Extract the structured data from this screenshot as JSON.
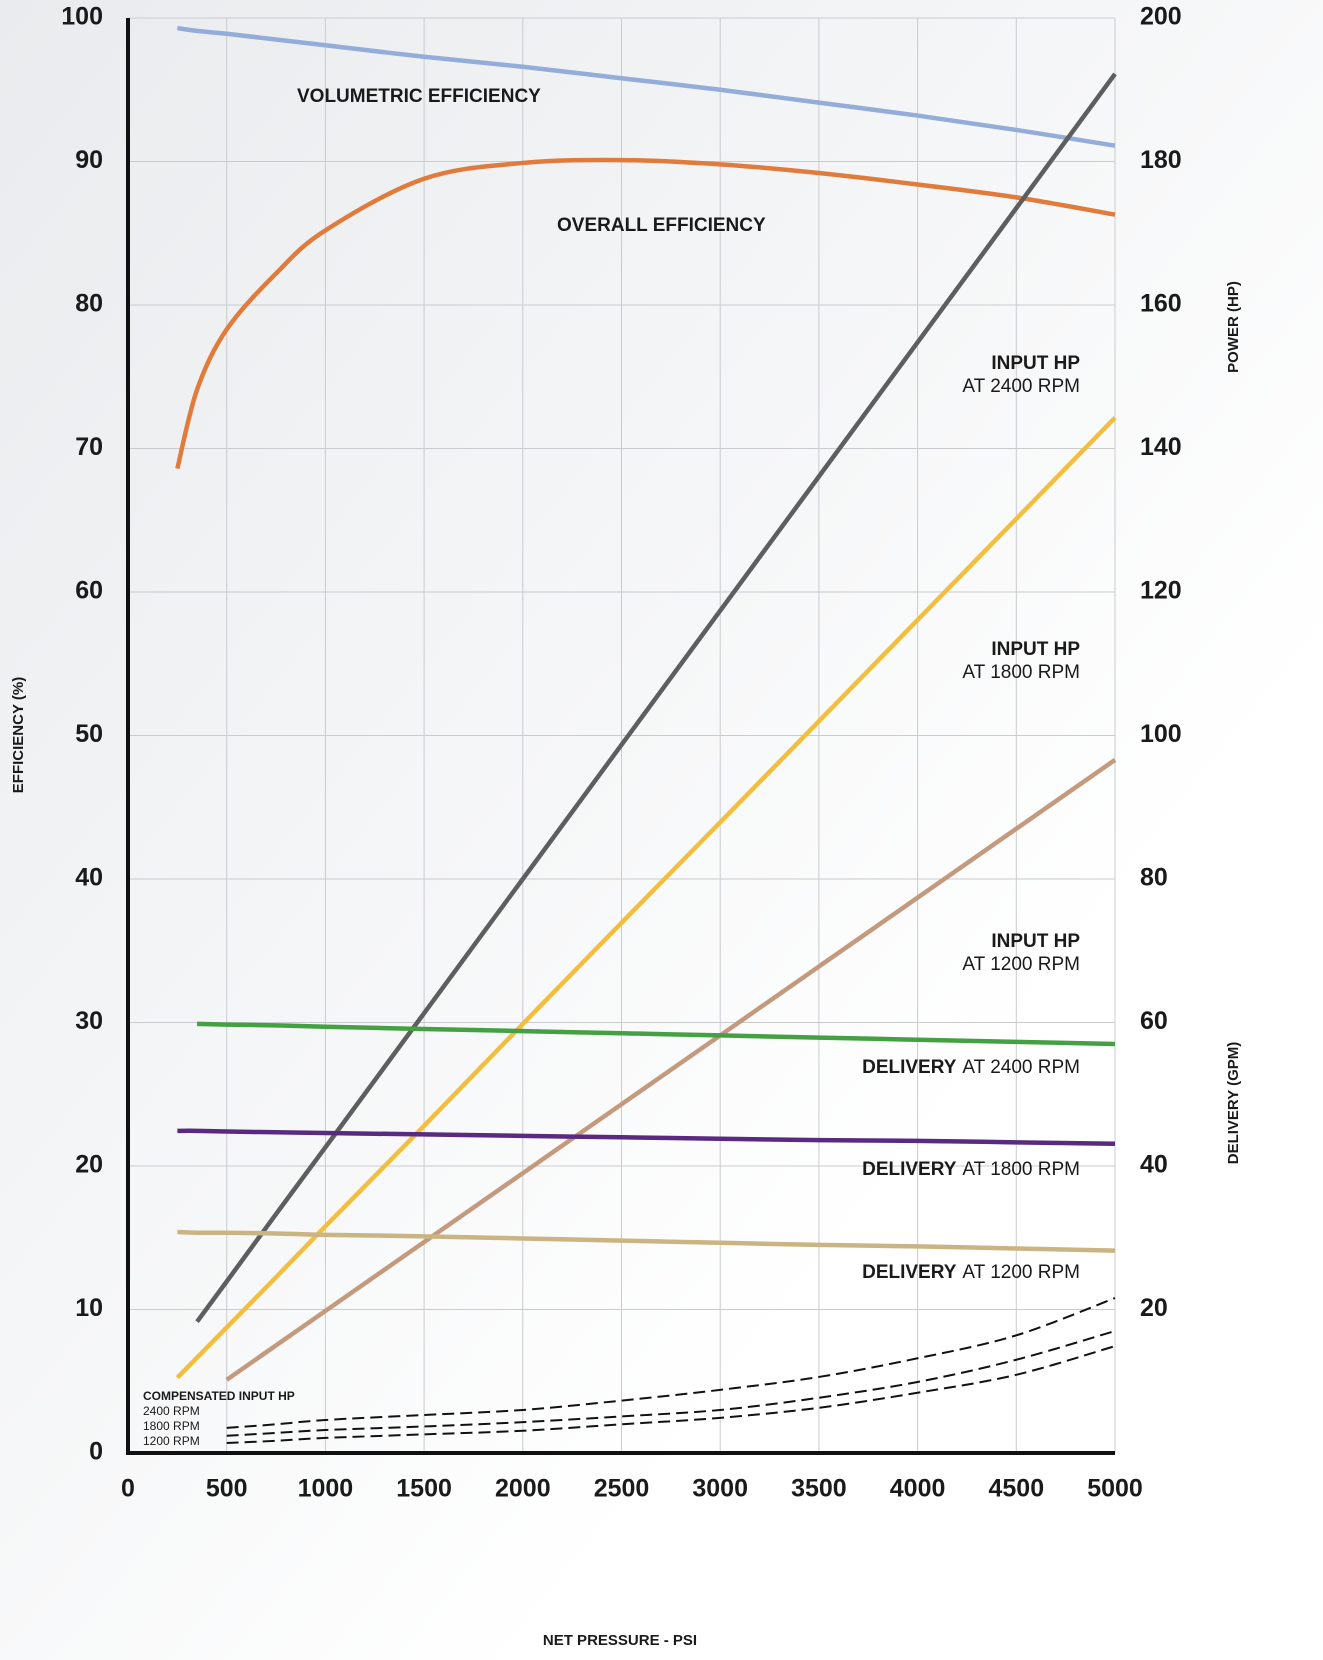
{
  "chart_data": {
    "type": "line",
    "x_label": "NET PRESSURE - PSI",
    "y_label": "EFFICIENCY (%)",
    "y2_label_upper": "POWER (HP)",
    "y2_label_lower": "DELIVERY (GPM)",
    "xlim": [
      0,
      5000
    ],
    "xticks": [
      0,
      500,
      1000,
      1500,
      2000,
      2500,
      3000,
      3500,
      4000,
      4500,
      5000
    ],
    "ylim": [
      0,
      100
    ],
    "yticks": [
      0,
      10,
      20,
      30,
      40,
      50,
      60,
      70,
      80,
      90,
      100
    ],
    "y2lim": [
      0,
      200
    ],
    "y2ticks": [
      20,
      40,
      60,
      80,
      100,
      120,
      140,
      160,
      180,
      200
    ],
    "grid": true,
    "compensated_title": "COMPENSATED INPUT HP",
    "x": [
      250,
      350,
      500,
      750,
      1000,
      1500,
      2000,
      2500,
      3000,
      3500,
      4000,
      4500,
      5000
    ],
    "series": [
      {
        "name": "VOLUMETRIC EFFICIENCY",
        "color": "#94acd9",
        "values": [
          99.3,
          99.1,
          98.9,
          98.5,
          98.1,
          97.3,
          96.6,
          95.8,
          95.0,
          94.1,
          93.2,
          92.2,
          91.1
        ]
      },
      {
        "name": "OVERALL EFFICIENCY",
        "color": "#e07b3c",
        "values": [
          68.6,
          74.1,
          78.3,
          82.2,
          85.2,
          88.8,
          89.9,
          90.1,
          89.8,
          89.2,
          88.4,
          87.5,
          86.3
        ]
      },
      {
        "name": "INPUT HP",
        "name_suffix": "AT 2400 RPM",
        "color": "#5e5e60",
        "axis": "y2",
        "values": [
          null,
          18.3,
          23.9,
          33.3,
          42.6,
          61.3,
          80.0,
          98.7,
          117.4,
          136.1,
          154.8,
          173.5,
          192.2
        ]
      },
      {
        "name": "INPUT HP",
        "name_suffix": "AT 1800 RPM",
        "color": "#f3be3e",
        "axis": "y2",
        "values": [
          10.5,
          13.3,
          17.5,
          24.5,
          31.6,
          45.6,
          59.8,
          73.9,
          87.9,
          102.0,
          116.1,
          130.2,
          144.3
        ]
      },
      {
        "name": "INPUT HP",
        "name_suffix": "AT 1200 RPM",
        "color": "#c49a7e",
        "axis": "y2",
        "values": [
          null,
          null,
          10.2,
          15.0,
          19.8,
          29.4,
          39.0,
          48.6,
          58.2,
          67.8,
          77.4,
          87.0,
          96.6
        ]
      },
      {
        "name": "DELIVERY",
        "name_suffix": "AT 2400 RPM",
        "color": "#44a043",
        "axis": "y2",
        "values": [
          null,
          59.8,
          59.7,
          59.6,
          59.4,
          59.1,
          58.8,
          58.5,
          58.2,
          57.9,
          57.6,
          57.3,
          57.0
        ]
      },
      {
        "name": "DELIVERY",
        "name_suffix": "AT 1800 RPM",
        "color": "#5a2a82",
        "axis": "y2",
        "values": [
          44.9,
          44.9,
          44.8,
          44.7,
          44.6,
          44.4,
          44.2,
          44.0,
          43.8,
          43.6,
          43.5,
          43.3,
          43.1
        ]
      },
      {
        "name": "DELIVERY",
        "name_suffix": "AT 1200 RPM",
        "color": "#cbb483",
        "axis": "y2",
        "values": [
          30.8,
          30.7,
          30.7,
          30.6,
          30.4,
          30.2,
          29.9,
          29.6,
          29.3,
          29.0,
          28.8,
          28.5,
          28.2
        ]
      },
      {
        "name": "2400 RPM",
        "color": "#111111",
        "axis": "y2",
        "dashed": true,
        "values": [
          null,
          null,
          3.5,
          4.0,
          4.6,
          5.3,
          6.0,
          7.3,
          8.8,
          10.6,
          13.2,
          16.4,
          21.6
        ]
      },
      {
        "name": "1800 RPM",
        "color": "#111111",
        "axis": "y2",
        "dashed": true,
        "values": [
          null,
          null,
          2.4,
          2.8,
          3.2,
          3.7,
          4.3,
          5.1,
          6.0,
          7.7,
          9.9,
          13.0,
          17.0
        ]
      },
      {
        "name": "1200 RPM",
        "color": "#111111",
        "axis": "y2",
        "dashed": true,
        "values": [
          null,
          null,
          1.4,
          1.7,
          2.1,
          2.6,
          3.1,
          4.0,
          4.9,
          6.3,
          8.4,
          10.9,
          14.9
        ]
      }
    ]
  }
}
